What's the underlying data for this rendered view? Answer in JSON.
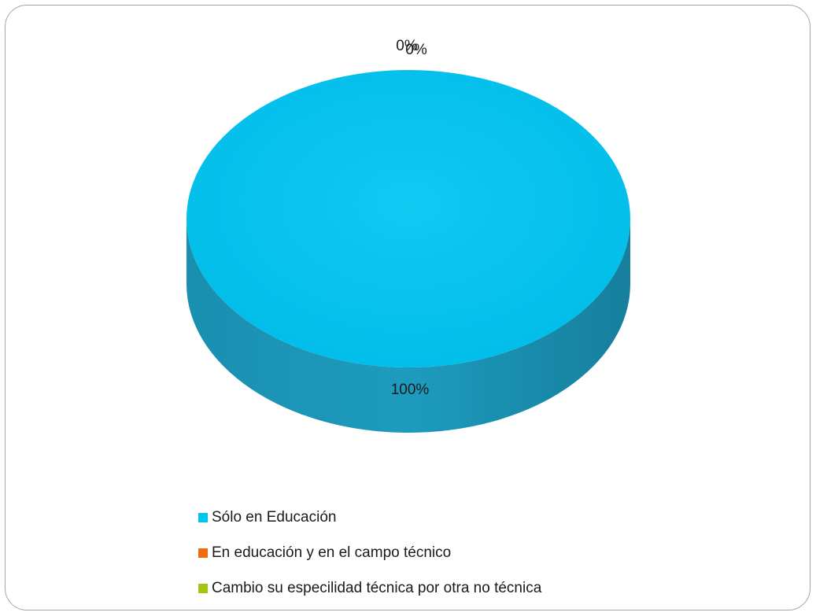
{
  "chart_data": {
    "type": "pie",
    "title": "",
    "categories": [
      "Sólo en Educación",
      "En educación y en el campo técnico",
      "Cambio su especilidad técnica por otra no técnica"
    ],
    "values": [
      100,
      0,
      0
    ],
    "value_labels": [
      "100%",
      "0%",
      "0%"
    ],
    "colors": [
      "#00c4f0",
      "#f26a0f",
      "#a2c515"
    ],
    "style": "3d",
    "legend_position": "bottom"
  }
}
